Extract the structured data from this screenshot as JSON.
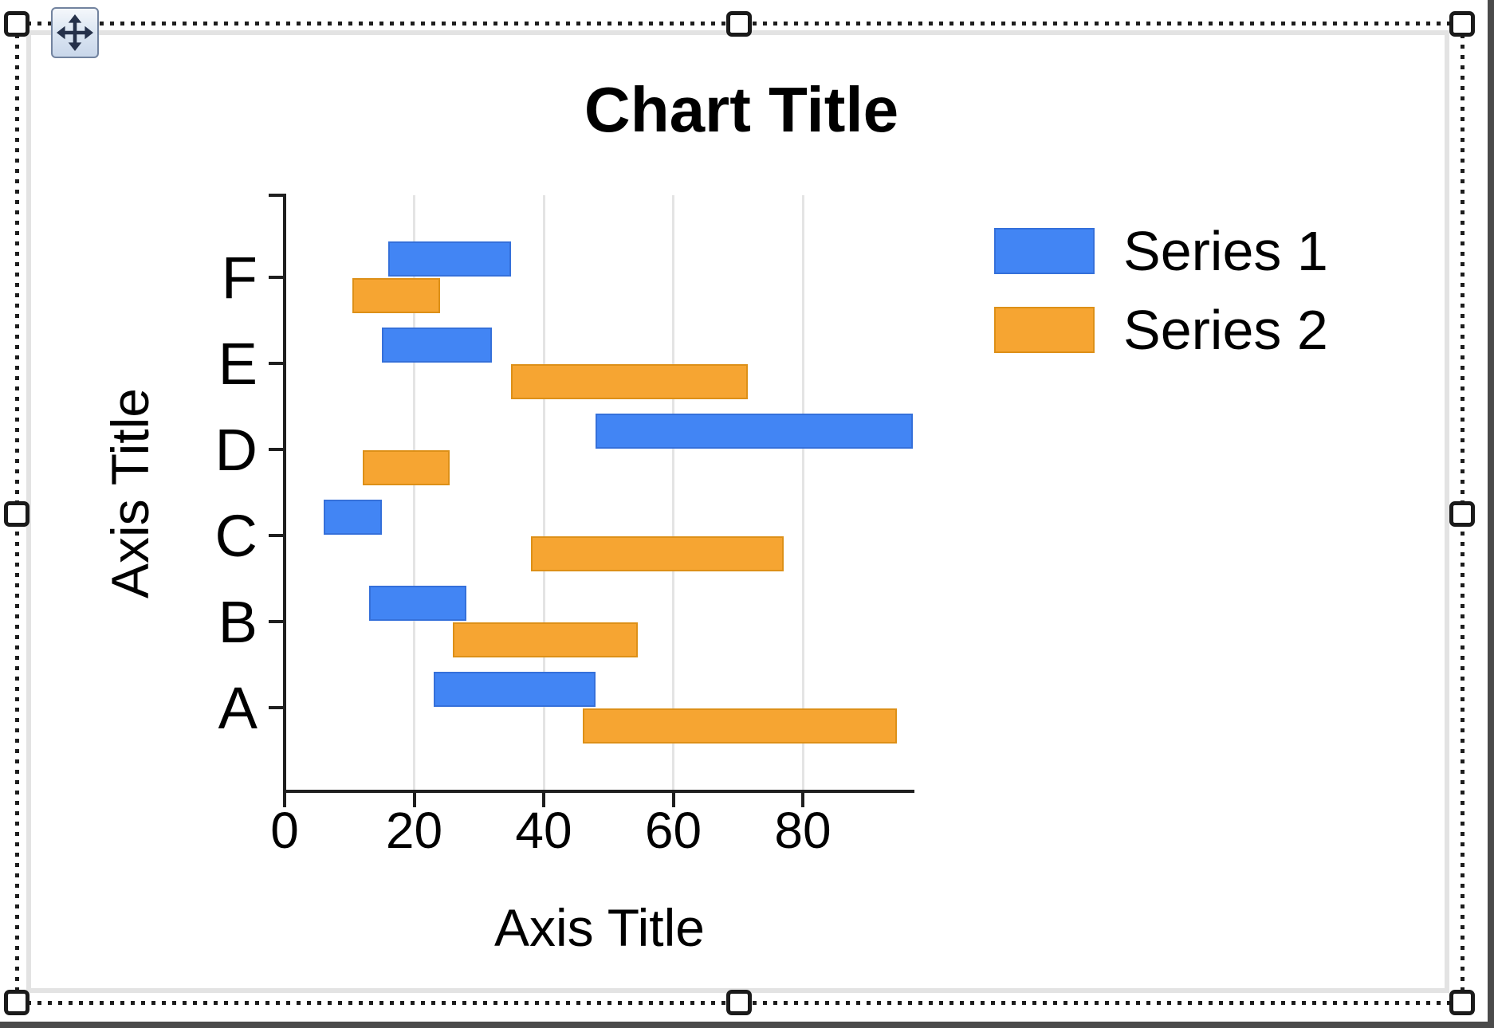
{
  "object_selection": {
    "handle_shape": "rounded-square",
    "handle_positions": [
      "top-left",
      "top-center",
      "top-right",
      "middle-left",
      "middle-right",
      "bottom-left",
      "bottom-center",
      "bottom-right"
    ],
    "move_icon": "four-direction-move-arrows"
  },
  "colors": {
    "gridline": "#E4E4E4",
    "axis": "#1F1F1F",
    "selection_dot": "#1D1D1D",
    "frame_gray": "#E3E3E3",
    "screen_edge": "#4B4B4B",
    "series1": "#4285F4",
    "series2": "#F6A532"
  },
  "chart_data": {
    "type": "bar",
    "subtype": "floating-horizontal-bars",
    "title": "Chart Title",
    "xlabel": "Axis Title",
    "ylabel": "Axis Title",
    "categories": [
      "F",
      "E",
      "D",
      "C",
      "B",
      "A"
    ],
    "category_order": "top-to-bottom",
    "x_ticks": [
      0,
      20,
      40,
      60,
      80
    ],
    "xlim": [
      0,
      97
    ],
    "grid": "vertical-only",
    "legend_position": "right-top",
    "series": [
      {
        "name": "Series 1",
        "color": "#4285F4",
        "border_color": "#3570DA",
        "values": [
          [
            16,
            35
          ],
          [
            15,
            32
          ],
          [
            48,
            97
          ],
          [
            6,
            15
          ],
          [
            13,
            28
          ],
          [
            23,
            48
          ]
        ]
      },
      {
        "name": "Series 2",
        "color": "#F6A532",
        "border_color": "#DD9018",
        "values": [
          [
            10.5,
            24
          ],
          [
            35,
            71.5
          ],
          [
            12,
            25.5
          ],
          [
            38,
            77
          ],
          [
            26,
            54.5
          ],
          [
            46,
            94.5
          ]
        ]
      }
    ]
  }
}
